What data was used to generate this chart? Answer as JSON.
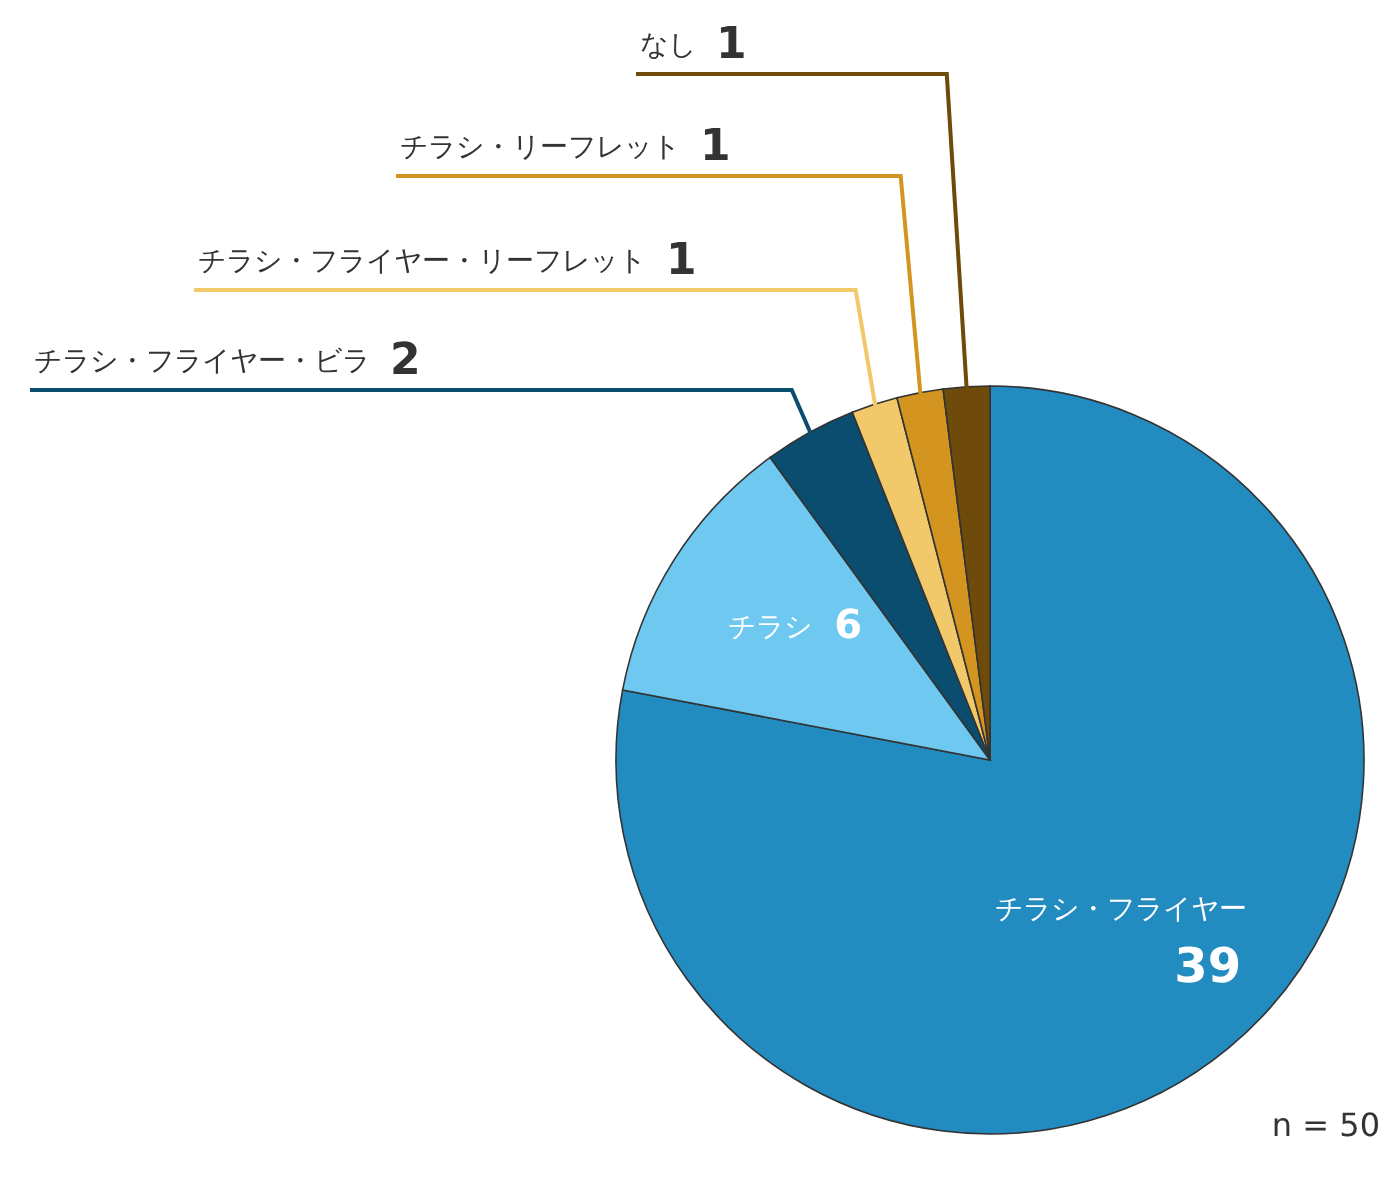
{
  "chart_data": {
    "type": "pie",
    "categories": [
      "チラシ・フライヤー",
      "チラシ",
      "チラシ・フライヤー・ビラ",
      "チラシ・フライヤー・リーフレット",
      "チラシ・リーフレット",
      "なし"
    ],
    "values": [
      39,
      6,
      2,
      1,
      1,
      1
    ],
    "colors": [
      "#228bc0",
      "#6ec8f0",
      "#0b4d6e",
      "#f1c86a",
      "#d3951f",
      "#6e4a0b"
    ],
    "data_labels": true,
    "annotations": [
      "n = 50"
    ]
  }
}
